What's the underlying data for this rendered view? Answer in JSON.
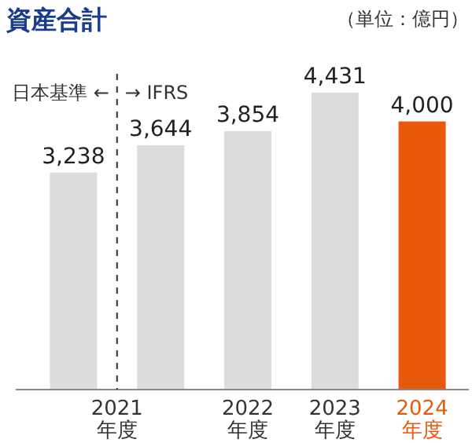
{
  "chart_data": {
    "type": "bar",
    "title": "資産合計",
    "subtitle": "（単位：億円）",
    "categories": [
      null,
      "2021\n年度",
      "2022\n年度",
      "2023\n年度",
      "2024\n年度"
    ],
    "values": [
      3238,
      3644,
      3854,
      4431,
      4000
    ],
    "value_labels": [
      "3,238",
      "3,644",
      "3,854",
      "4,431",
      "4,000"
    ],
    "colors": [
      "#dcdcdc",
      "#dcdcdc",
      "#dcdcdc",
      "#dcdcdc",
      "#e8590c"
    ],
    "ref_lines": [
      {
        "axis": "x",
        "value": "2021\n年度",
        "line_style": "dashed",
        "color": "#333333"
      }
    ],
    "annotations": [
      "日本基準 ←",
      "→ IFRS"
    ]
  }
}
